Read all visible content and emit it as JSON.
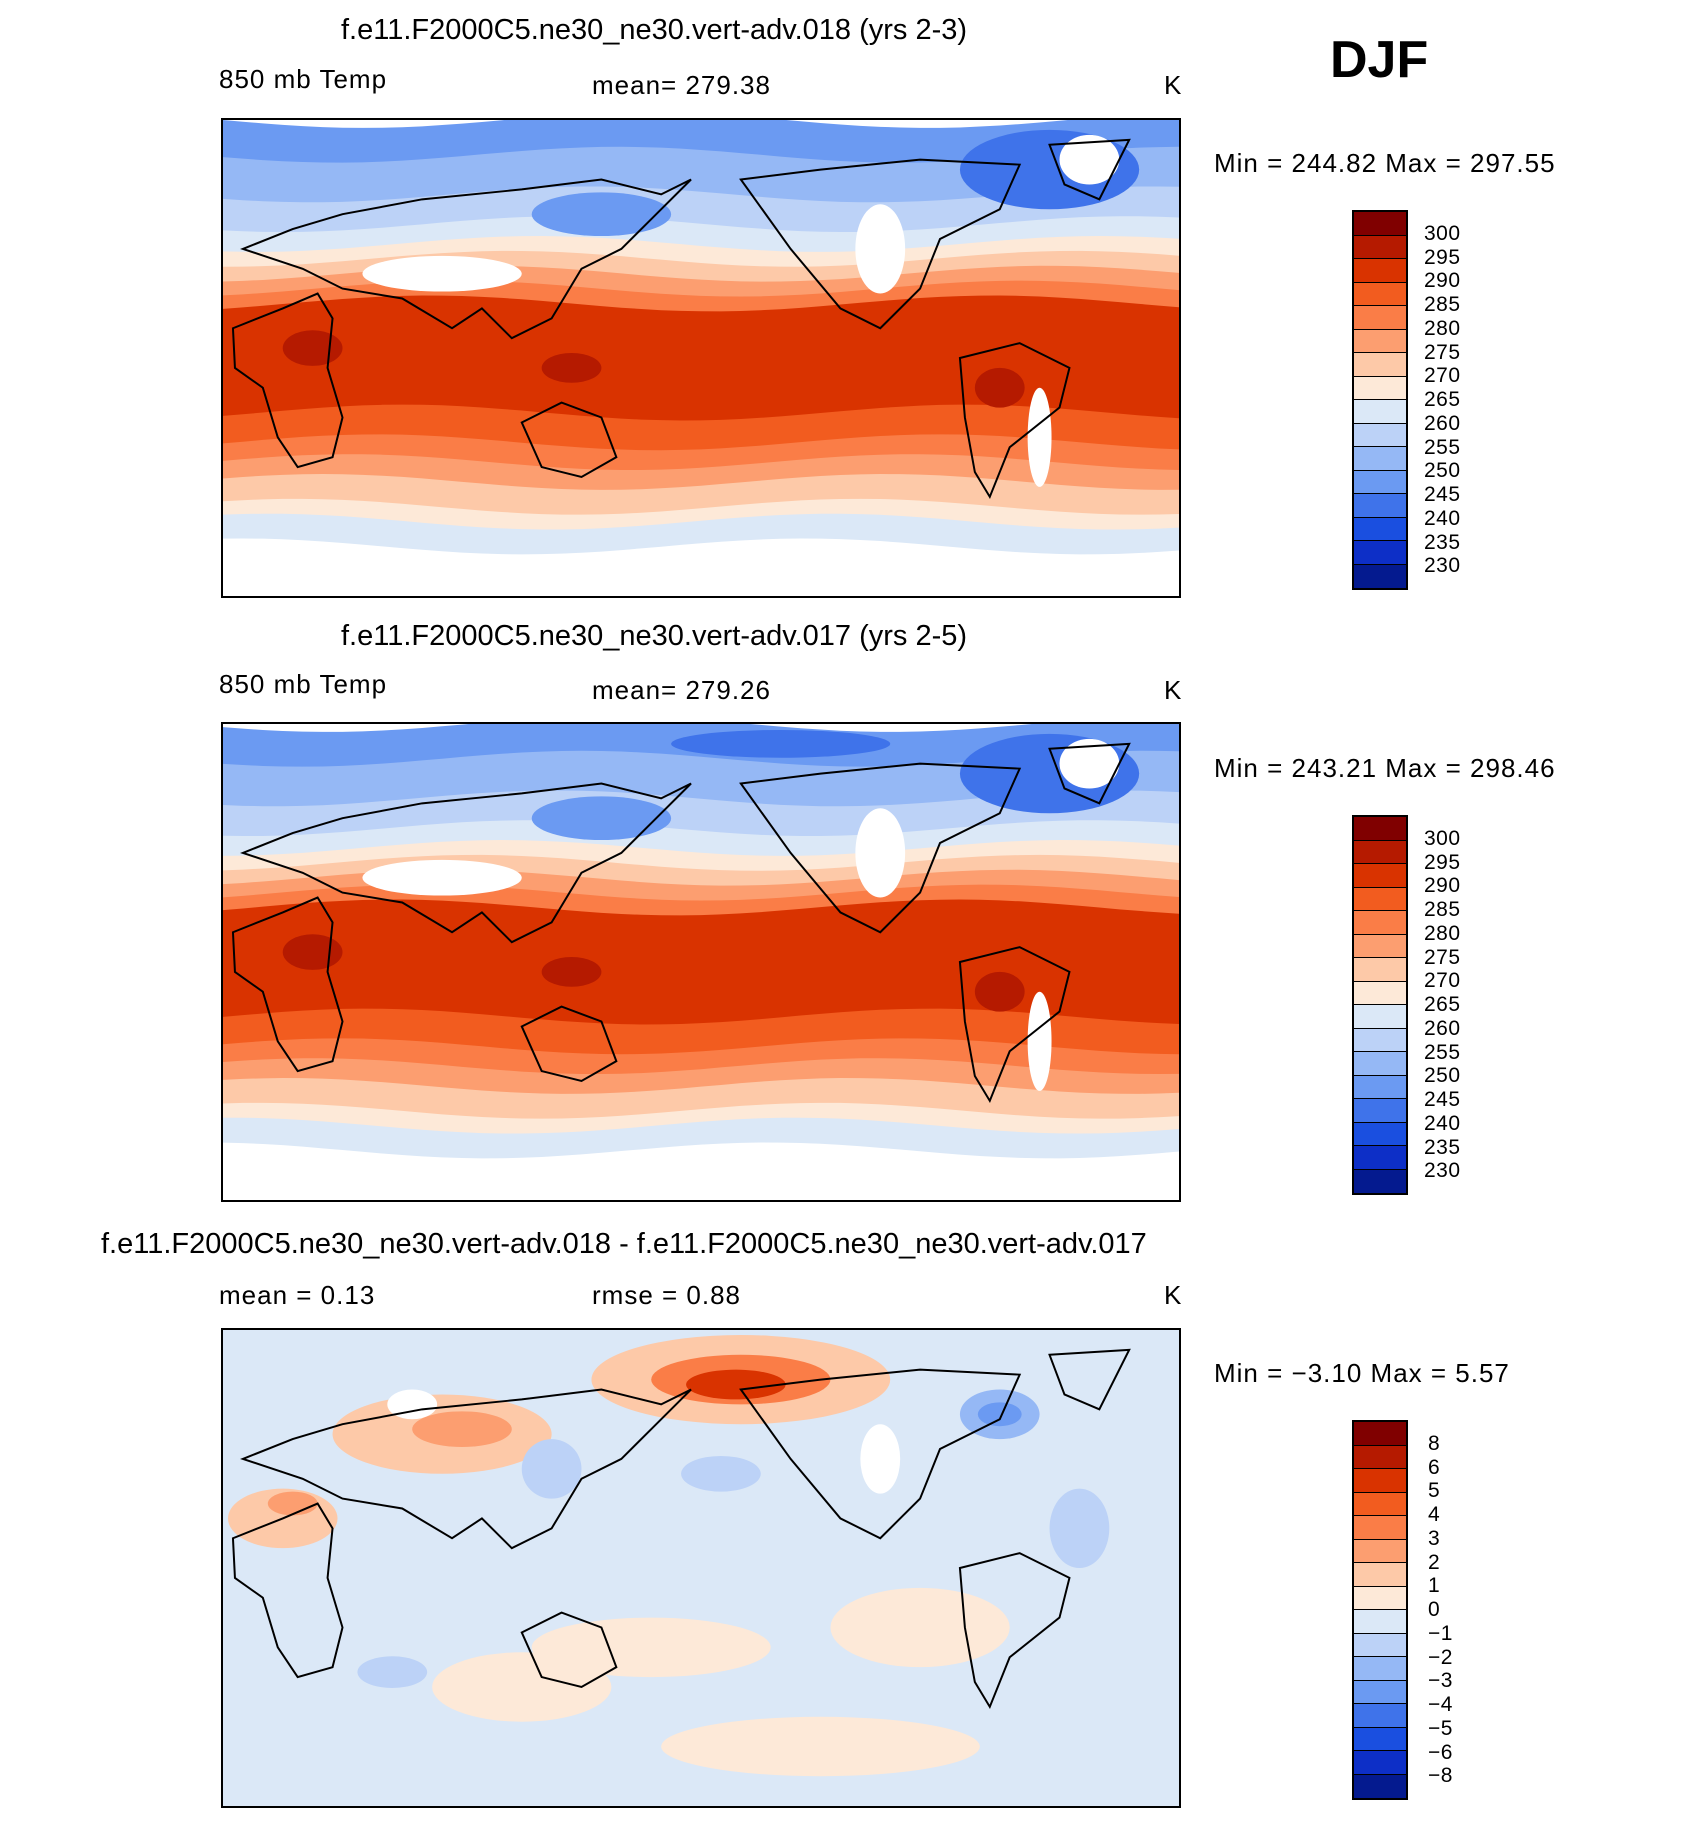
{
  "season": "DJF",
  "panels": [
    {
      "title": "f.e11.F2000C5.ne30_ne30.vert-adv.018 (yrs 2-3)",
      "left_label": "850 mb Temp",
      "center_label": "mean=  279.38",
      "units": "K",
      "minmax": "Min  =  244.82  Max  =  297.55",
      "kind": "abs"
    },
    {
      "title": "f.e11.F2000C5.ne30_ne30.vert-adv.017 (yrs 2-5)",
      "left_label": "850 mb Temp",
      "center_label": "mean=  279.26",
      "units": "K",
      "minmax": "Min  =  243.21  Max  =  298.46",
      "kind": "abs"
    },
    {
      "title": "f.e11.F2000C5.ne30_ne30.vert-adv.018 - f.e11.F2000C5.ne30_ne30.vert-adv.017",
      "left_label": "mean =     0.13",
      "center_label": "rmse =     0.88",
      "units": "K",
      "minmax": "Min  =    −3.10  Max  =     5.57",
      "kind": "diff"
    }
  ],
  "abs_colorbar": {
    "labels": [
      "300",
      "295",
      "290",
      "285",
      "280",
      "275",
      "270",
      "265",
      "260",
      "255",
      "250",
      "245",
      "240",
      "235",
      "230"
    ],
    "colors": [
      "#800000",
      "#b51a00",
      "#d93300",
      "#f25c1f",
      "#fa7d47",
      "#fc9e70",
      "#fdc9a8",
      "#fde9d8",
      "#dbe8f7",
      "#bcd2f7",
      "#95b8f5",
      "#6b9af2",
      "#3f73ea",
      "#1a4fe0",
      "#0d2fc7",
      "#041a8f"
    ]
  },
  "diff_colorbar": {
    "labels": [
      "8",
      "6",
      "5",
      "4",
      "3",
      "2",
      "1",
      "0",
      "−1",
      "−2",
      "−3",
      "−4",
      "−5",
      "−6",
      "−8"
    ],
    "colors": [
      "#800000",
      "#b51a00",
      "#d93300",
      "#f25c1f",
      "#fa7d47",
      "#fc9e70",
      "#fdc9a8",
      "#fde9d8",
      "#dbe8f7",
      "#bcd2f7",
      "#95b8f5",
      "#6b9af2",
      "#3f73ea",
      "#1a4fe0",
      "#0d2fc7",
      "#041a8f"
    ]
  }
}
